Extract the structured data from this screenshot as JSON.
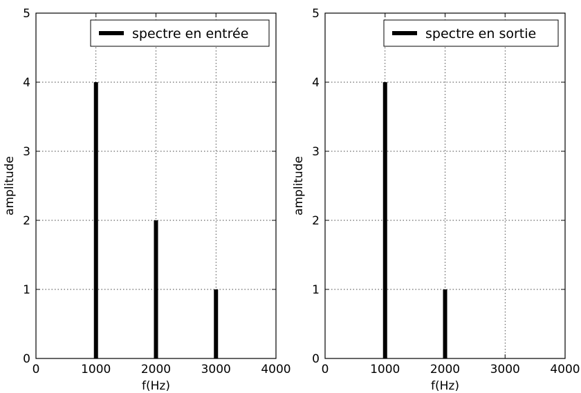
{
  "chart_data": [
    {
      "type": "bar",
      "x": [
        1000,
        2000,
        3000
      ],
      "values": [
        4,
        2,
        1
      ],
      "series": [
        {
          "name": "spectre en entrée",
          "x": [
            1000,
            2000,
            3000
          ],
          "values": [
            4,
            2,
            1
          ]
        }
      ],
      "title": "",
      "xlabel": "f(Hz)",
      "ylabel": "amplitude",
      "xlim": [
        0,
        4000
      ],
      "ylim": [
        0,
        5
      ],
      "xticks": [
        "0",
        "1000",
        "2000",
        "3000",
        "4000"
      ],
      "yticks": [
        "0",
        "1",
        "2",
        "3",
        "4",
        "5"
      ],
      "grid": true,
      "legend": {
        "position": "top-right",
        "label": "spectre en entrée"
      },
      "color": "#000000"
    },
    {
      "type": "bar",
      "x": [
        1000,
        2000
      ],
      "values": [
        4,
        1
      ],
      "series": [
        {
          "name": "spectre en sortie",
          "x": [
            1000,
            2000
          ],
          "values": [
            4,
            1
          ]
        }
      ],
      "title": "",
      "xlabel": "f(Hz)",
      "ylabel": "amplitude",
      "xlim": [
        0,
        4000
      ],
      "ylim": [
        0,
        5
      ],
      "xticks": [
        "0",
        "1000",
        "2000",
        "3000",
        "4000"
      ],
      "yticks": [
        "0",
        "1",
        "2",
        "3",
        "4",
        "5"
      ],
      "grid": true,
      "legend": {
        "position": "top-right",
        "label": "spectre en sortie"
      },
      "color": "#000000"
    }
  ]
}
